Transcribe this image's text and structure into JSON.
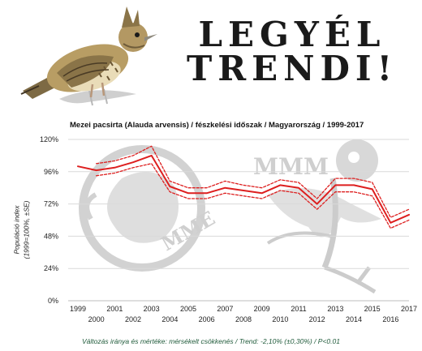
{
  "header": {
    "headline_line1": "LEGYÉL",
    "headline_line2": "TRENDI!",
    "bird_illustration": "skylark"
  },
  "chart_title": "Mezei pacsirta (Alauda arvensis) / fészkelési időszak / Magyarország / 1999-2017",
  "watermark": {
    "logo_text": "MME",
    "text": "MMM"
  },
  "footer": "Változás iránya és mértéke: mérsékelt csökkenés / Trend: -2,10% (±0,30%) / P<0.01",
  "colors": {
    "series": "#dd1f1f",
    "watermark": "#cfcfcf",
    "footer": "#1f5a3a"
  },
  "chart_data": {
    "type": "line",
    "title": "Mezei pacsirta (Alauda arvensis) / fészkelési időszak / Magyarország / 1999-2017",
    "ylabel": "Populáció index (1999=100%, ±SE)",
    "xlabel": "",
    "ylim": [
      0,
      120
    ],
    "yticks": [
      "0%",
      "24%",
      "48%",
      "72%",
      "96%",
      "120%"
    ],
    "grid": true,
    "x": [
      "1999",
      "2000",
      "2001",
      "2002",
      "2003",
      "2004",
      "2005",
      "2006",
      "2007",
      "2008",
      "2009",
      "2010",
      "2011",
      "2012",
      "2013",
      "2014",
      "2015",
      "2016",
      "2017"
    ],
    "series": [
      {
        "role": "index",
        "style": "solid",
        "values": [
          100,
          97,
          99,
          103,
          108,
          85,
          80,
          80,
          84,
          82,
          80,
          86,
          84,
          72,
          86,
          86,
          83,
          58,
          64
        ]
      },
      {
        "role": "upper",
        "style": "dashed",
        "values": [
          null,
          102,
          104,
          108,
          115,
          89,
          84,
          84,
          89,
          86,
          84,
          90,
          88,
          76,
          91,
          91,
          88,
          62,
          68
        ]
      },
      {
        "role": "lower",
        "style": "dashed",
        "values": [
          null,
          93,
          95,
          99,
          102,
          81,
          76,
          76,
          80,
          78,
          76,
          82,
          80,
          68,
          81,
          81,
          78,
          54,
          60
        ]
      }
    ]
  }
}
